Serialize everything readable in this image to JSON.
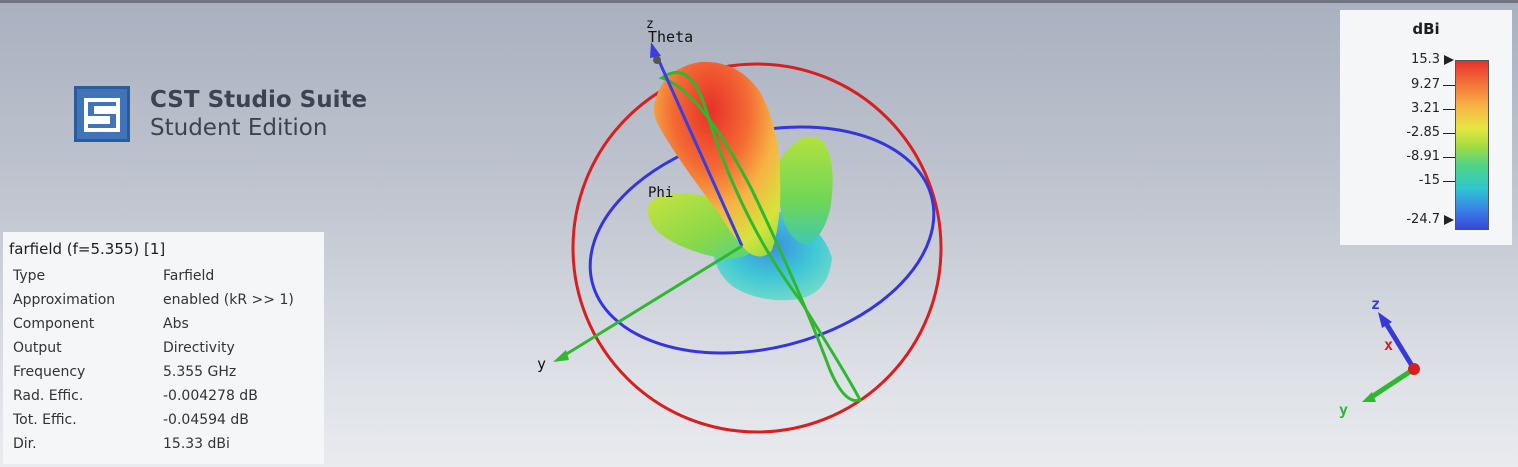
{
  "app": {
    "logo_title": "CST Studio Suite",
    "logo_subtitle": "Student Edition"
  },
  "info_panel": {
    "title": "farfield (f=5.355) [1]",
    "rows": [
      {
        "key": "Type",
        "value": "Farfield"
      },
      {
        "key": "Approximation",
        "value": "enabled (kR >> 1)"
      },
      {
        "key": "Component",
        "value": "Abs"
      },
      {
        "key": "Output",
        "value": "Directivity"
      },
      {
        "key": "Frequency",
        "value": "5.355 GHz"
      },
      {
        "key": "Rad. Effic.",
        "value": "-0.004278 dB"
      },
      {
        "key": "Tot. Effic.",
        "value": "-0.04594 dB"
      },
      {
        "key": "Dir.",
        "value": "15.33 dBi"
      }
    ]
  },
  "viewport": {
    "label_theta": "Theta",
    "label_z": "z",
    "label_y": "y",
    "label_phi": "Phi"
  },
  "orientation_gizmo": {
    "label_z": "z",
    "label_x": "x",
    "label_y": "y"
  },
  "legend": {
    "unit": "dBi",
    "ticks": [
      "15.3",
      "9.27",
      "3.21",
      "-2.85",
      "-8.91",
      "-15",
      "-24.7"
    ]
  },
  "colors": {
    "theta_ring": "#d81f1f",
    "phi_ring": "#3535dd",
    "z_axis": "#3c3ce0",
    "y_axis": "#2fb82f",
    "x_axis": "#d81f1f"
  }
}
